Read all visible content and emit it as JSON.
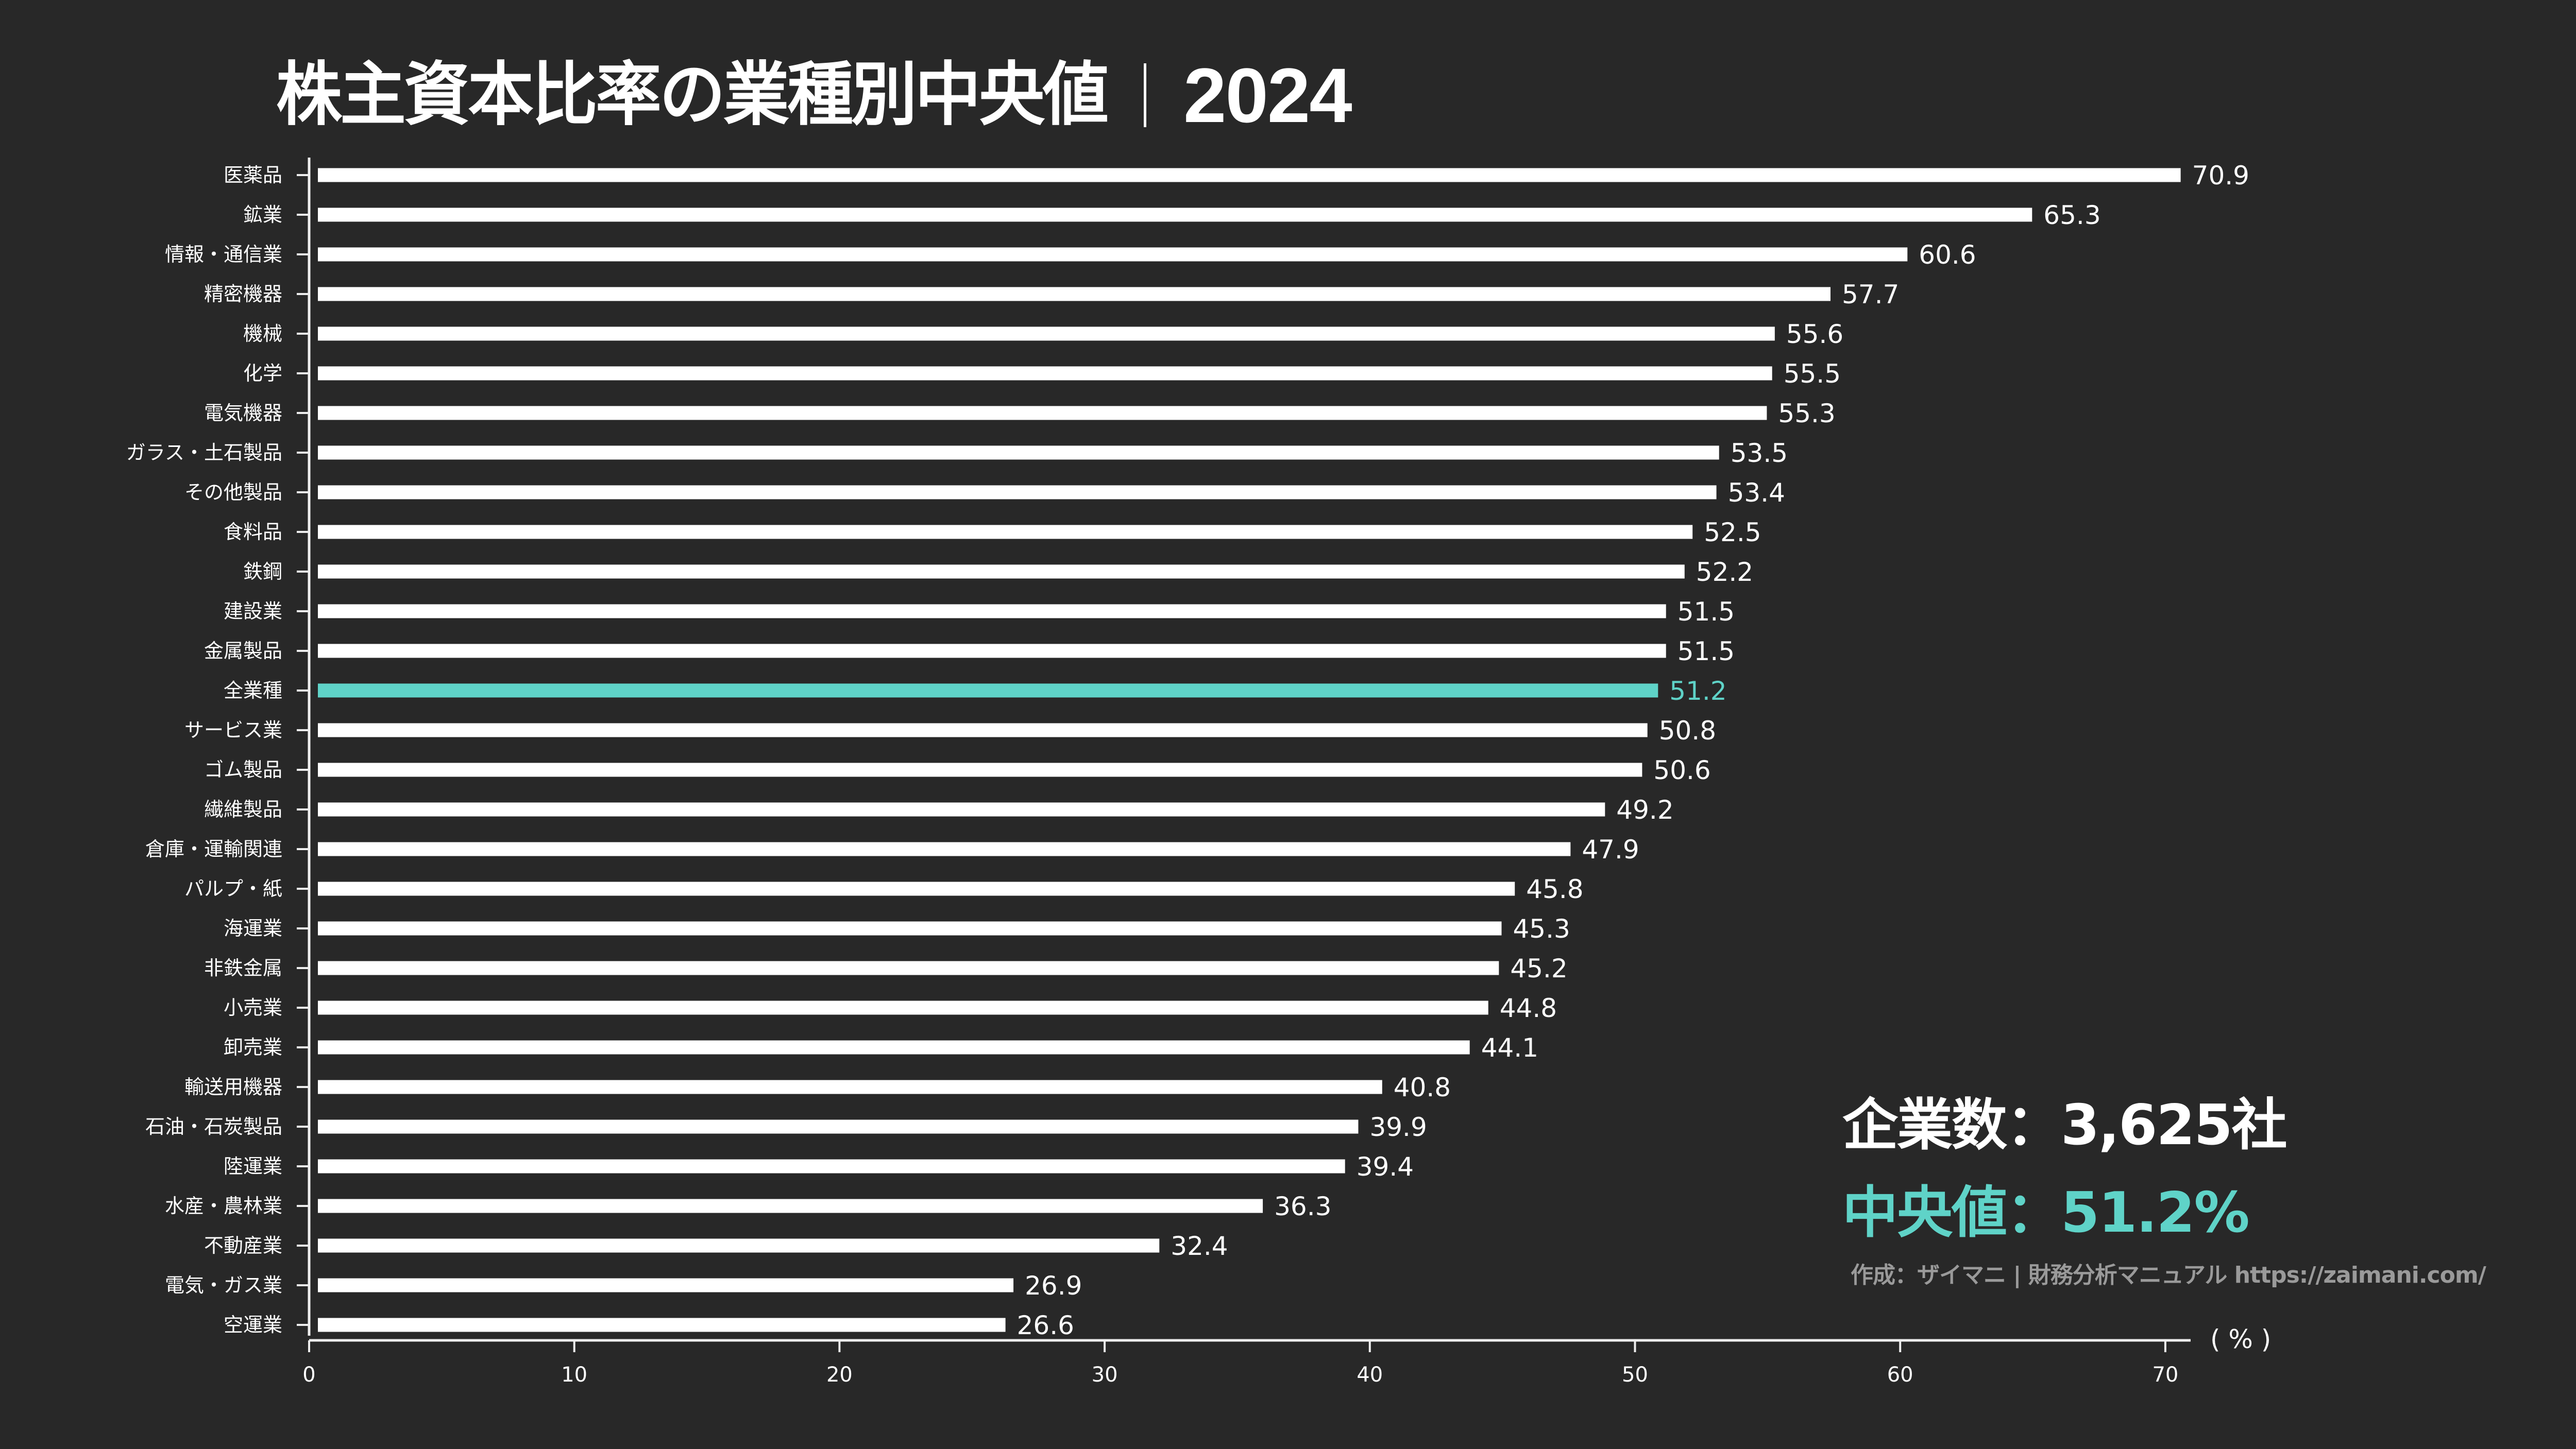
{
  "title": {
    "main": "株主資本比率の業種別中央値",
    "year": "2024"
  },
  "annotation": {
    "company_count": "企業数：3,625社",
    "median": "中央値：51.2%",
    "credit": "作成：ザイマニ | 財務分析マニュアル https://zaimani.com/"
  },
  "colors": {
    "background": "#282828",
    "bar": "#ffffff",
    "highlight": "#5fd3c8",
    "credit_text": "#9a9a9a",
    "axis": "#eeeeee"
  },
  "chart_data": {
    "type": "bar",
    "orientation": "horizontal",
    "title": "株主資本比率の業種別中央値｜2024",
    "xlabel": "( % )",
    "ylabel": "",
    "xlim": [
      0,
      70
    ],
    "xticks": [
      0,
      10,
      20,
      30,
      40,
      50,
      60,
      70
    ],
    "grid": false,
    "highlight_category": "全業種",
    "categories": [
      "医薬品",
      "鉱業",
      "情報・通信業",
      "精密機器",
      "機械",
      "化学",
      "電気機器",
      "ガラス・土石製品",
      "その他製品",
      "食料品",
      "鉄鋼",
      "建設業",
      "金属製品",
      "全業種",
      "サービス業",
      "ゴム製品",
      "繊維製品",
      "倉庫・運輸関連",
      "パルプ・紙",
      "海運業",
      "非鉄金属",
      "小売業",
      "卸売業",
      "輸送用機器",
      "石油・石炭製品",
      "陸運業",
      "水産・農林業",
      "不動産業",
      "電気・ガス業",
      "空運業"
    ],
    "values": [
      70.9,
      65.3,
      60.6,
      57.7,
      55.6,
      55.5,
      55.3,
      53.5,
      53.4,
      52.5,
      52.2,
      51.5,
      51.5,
      51.2,
      50.8,
      50.6,
      49.2,
      47.9,
      45.8,
      45.3,
      45.2,
      44.8,
      44.1,
      40.8,
      39.9,
      39.4,
      36.3,
      32.4,
      26.9,
      26.6
    ],
    "value_labels": [
      "70.9",
      "65.3",
      "60.6",
      "57.7",
      "55.6",
      "55.5",
      "55.3",
      "53.5",
      "53.4",
      "52.5",
      "52.2",
      "51.5",
      "51.5",
      "51.2",
      "50.8",
      "50.6",
      "49.2",
      "47.9",
      "45.8",
      "45.3",
      "45.2",
      "44.8",
      "44.1",
      "40.8",
      "39.9",
      "39.4",
      "36.3",
      "32.4",
      "26.9",
      "26.6"
    ],
    "xtick_labels": [
      "0",
      "10",
      "20",
      "30",
      "40",
      "50",
      "60",
      "70"
    ]
  }
}
